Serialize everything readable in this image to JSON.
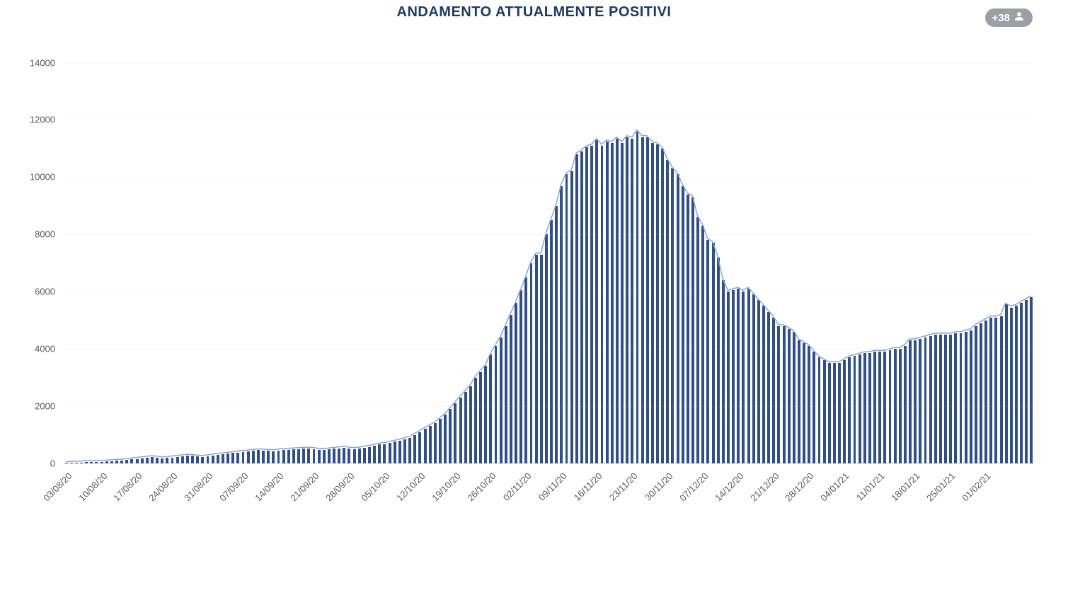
{
  "chart": {
    "type": "bar",
    "title": "ANDAMENTO ATTUALMENTE POSITIVI",
    "title_color": "#1b3a6b",
    "title_fontsize": 20,
    "background_color": "#ffffff",
    "bar_color": "#2f4e8f",
    "line_color": "#8aa4d6",
    "grid_color": "rgba(200,200,210,0.12)",
    "text_color": "#5a5a5a",
    "ylim": [
      0,
      15200
    ],
    "yticks": [
      0,
      2000,
      4000,
      6000,
      8000,
      10000,
      12000,
      14000
    ],
    "xticks": [
      {
        "label": "03/08/20",
        "index": 0
      },
      {
        "label": "10/08/20",
        "index": 7
      },
      {
        "label": "17/08/20",
        "index": 14
      },
      {
        "label": "24/08/20",
        "index": 21
      },
      {
        "label": "31/08/20",
        "index": 28
      },
      {
        "label": "07/09/20",
        "index": 35
      },
      {
        "label": "14/09/20",
        "index": 42
      },
      {
        "label": "21/09/20",
        "index": 49
      },
      {
        "label": "28/09/20",
        "index": 56
      },
      {
        "label": "05/10/20",
        "index": 63
      },
      {
        "label": "12/10/20",
        "index": 70
      },
      {
        "label": "19/10/20",
        "index": 77
      },
      {
        "label": "26/10/20",
        "index": 84
      },
      {
        "label": "02/11/20",
        "index": 91
      },
      {
        "label": "09/11/20",
        "index": 98
      },
      {
        "label": "16/11/20",
        "index": 105
      },
      {
        "label": "23/11/20",
        "index": 112
      },
      {
        "label": "30/11/20",
        "index": 119
      },
      {
        "label": "07/12/20",
        "index": 126
      },
      {
        "label": "14/12/20",
        "index": 133
      },
      {
        "label": "21/12/20",
        "index": 140
      },
      {
        "label": "28/12/20",
        "index": 147
      },
      {
        "label": "04/01/21",
        "index": 154
      },
      {
        "label": "11/01/21",
        "index": 161
      },
      {
        "label": "18/01/21",
        "index": 168
      },
      {
        "label": "25/01/21",
        "index": 175
      },
      {
        "label": "01/02/21",
        "index": 182
      }
    ],
    "values": [
      20,
      25,
      30,
      35,
      40,
      45,
      50,
      60,
      70,
      80,
      90,
      100,
      120,
      140,
      160,
      180,
      200,
      220,
      200,
      180,
      190,
      210,
      230,
      250,
      270,
      260,
      240,
      230,
      250,
      280,
      300,
      320,
      340,
      360,
      380,
      400,
      420,
      440,
      460,
      450,
      440,
      430,
      450,
      470,
      480,
      490,
      500,
      510,
      520,
      500,
      480,
      470,
      490,
      510,
      530,
      550,
      520,
      500,
      520,
      550,
      580,
      620,
      660,
      680,
      720,
      760,
      800,
      850,
      900,
      1000,
      1100,
      1200,
      1300,
      1400,
      1550,
      1700,
      1900,
      2100,
      2300,
      2500,
      2700,
      3000,
      3200,
      3400,
      3800,
      4100,
      4400,
      4800,
      5200,
      5600,
      6050,
      6500,
      7000,
      7300,
      7300,
      8000,
      8500,
      9000,
      9700,
      10100,
      10200,
      10800,
      10900,
      11050,
      11100,
      11300,
      11100,
      11250,
      11200,
      11350,
      11200,
      11400,
      11350,
      11600,
      11400,
      11400,
      11200,
      11150,
      11000,
      10600,
      10300,
      10100,
      9700,
      9400,
      9300,
      8600,
      8300,
      7800,
      7700,
      7200,
      6400,
      6000,
      6050,
      6100,
      6000,
      6100,
      5900,
      5700,
      5500,
      5300,
      5100,
      4800,
      4800,
      4700,
      4600,
      4300,
      4200,
      4100,
      3900,
      3700,
      3600,
      3500,
      3500,
      3500,
      3600,
      3700,
      3750,
      3800,
      3850,
      3850,
      3900,
      3900,
      3900,
      3950,
      4000,
      4000,
      4100,
      4300,
      4300,
      4350,
      4400,
      4450,
      4500,
      4500,
      4500,
      4500,
      4550,
      4550,
      4600,
      4650,
      4800,
      4900,
      5000,
      5100,
      5100,
      5150,
      5550,
      5450,
      5500,
      5600,
      5700,
      5800
    ],
    "bar_width_ratio": 0.55,
    "tick_fontsize": 13
  },
  "badge": {
    "label": "+38",
    "bg_color": "#9aa0a6",
    "text_color": "#ffffff"
  }
}
